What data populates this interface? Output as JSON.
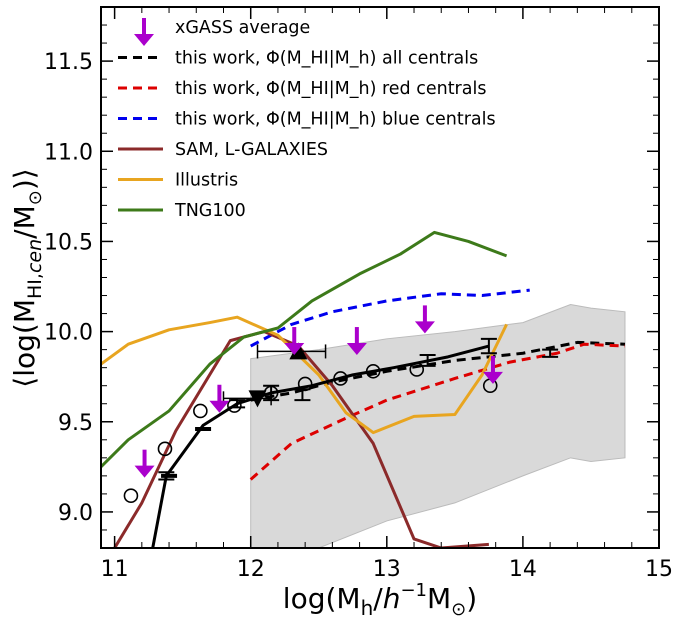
{
  "chart_data": {
    "type": "line",
    "xlabel": "log(M_h/h^-1 M_sun)",
    "ylabel": "<log(M_HI,cen/M_sun)>",
    "xlim": [
      10.9,
      15.0
    ],
    "ylim": [
      8.8,
      11.8
    ],
    "xticks": [
      11,
      12,
      13,
      14,
      15
    ],
    "xtick_labels": [
      "11",
      "12",
      "13",
      "14",
      "15"
    ],
    "yticks": [
      9.0,
      9.5,
      10.0,
      10.5,
      11.0,
      11.5
    ],
    "ytick_labels": [
      "9.0",
      "9.5",
      "10.0",
      "10.5",
      "11.0",
      "11.5"
    ],
    "legend_position": "top-left",
    "colors": {
      "all": "#000000",
      "red": "#dd0000",
      "blue": "#0000ee",
      "sam": "#8b2a2a",
      "illustris": "#e8a520",
      "tng": "#3d7a1a",
      "xgass": "#aa00cc",
      "band": "#d9d9d9"
    },
    "legend": [
      {
        "key": "xgass",
        "label": "xGASS average",
        "style": "arrow"
      },
      {
        "key": "all",
        "label": "this work, Φ(M_HI|M_h) all centrals",
        "style": "dashed"
      },
      {
        "key": "red",
        "label": "this work, Φ(M_HI|M_h) red centrals",
        "style": "dashed"
      },
      {
        "key": "blue",
        "label": "this work, Φ(M_HI|M_h) blue centrals",
        "style": "dashed"
      },
      {
        "key": "sam",
        "label": "SAM, L-GALAXIES",
        "style": "solid"
      },
      {
        "key": "illustris",
        "label": "Illustris",
        "style": "solid"
      },
      {
        "key": "tng",
        "label": "TNG100",
        "style": "solid"
      }
    ],
    "series": [
      {
        "key": "all",
        "style": "dashed",
        "x": [
          12.0,
          12.3,
          12.6,
          13.0,
          13.5,
          14.0,
          14.4,
          14.75
        ],
        "y": [
          9.62,
          9.66,
          9.72,
          9.78,
          9.84,
          9.88,
          9.94,
          9.93
        ]
      },
      {
        "key": "red",
        "style": "dashed",
        "x": [
          12.0,
          12.3,
          12.7,
          13.0,
          13.5,
          13.9,
          14.25,
          14.45,
          14.75
        ],
        "y": [
          9.18,
          9.38,
          9.52,
          9.62,
          9.74,
          9.83,
          9.88,
          9.93,
          9.92
        ]
      },
      {
        "key": "blue",
        "style": "dashed",
        "x": [
          12.0,
          12.3,
          12.6,
          13.0,
          13.4,
          13.7,
          14.05
        ],
        "y": [
          9.92,
          10.04,
          10.11,
          10.17,
          10.21,
          10.2,
          10.23
        ]
      },
      {
        "key": "sam",
        "style": "solid",
        "x": [
          11.0,
          11.2,
          11.45,
          11.85,
          12.1,
          12.35,
          12.6,
          12.9,
          13.2,
          13.4,
          13.75
        ],
        "y": [
          8.8,
          9.05,
          9.45,
          9.95,
          10.0,
          9.92,
          9.7,
          9.38,
          8.85,
          8.8,
          8.82
        ]
      },
      {
        "key": "illustris",
        "style": "solid",
        "x": [
          10.9,
          11.1,
          11.4,
          11.7,
          11.9,
          12.2,
          12.5,
          12.7,
          12.9,
          13.2,
          13.5,
          13.7,
          13.88
        ],
        "y": [
          9.82,
          9.93,
          10.01,
          10.05,
          10.08,
          9.98,
          9.76,
          9.55,
          9.44,
          9.53,
          9.54,
          9.76,
          10.04
        ]
      },
      {
        "key": "tng",
        "style": "solid",
        "x": [
          10.9,
          11.1,
          11.4,
          11.7,
          11.95,
          12.2,
          12.45,
          12.8,
          13.1,
          13.35,
          13.6,
          13.88
        ],
        "y": [
          9.25,
          9.4,
          9.56,
          9.82,
          9.97,
          10.02,
          10.17,
          10.32,
          10.43,
          10.55,
          10.5,
          10.42
        ]
      },
      {
        "key": "all",
        "style": "solid",
        "x": [
          11.28,
          11.38,
          11.65,
          11.9,
          12.15,
          12.45,
          12.75,
          13.05,
          13.45,
          13.75
        ],
        "y": [
          8.8,
          9.2,
          9.48,
          9.6,
          9.66,
          9.7,
          9.76,
          9.8,
          9.86,
          9.92
        ]
      }
    ],
    "band": {
      "x": [
        12.0,
        12.5,
        13.0,
        13.5,
        14.0,
        14.35,
        14.5,
        14.75
      ],
      "lower": [
        8.75,
        8.8,
        8.95,
        9.05,
        9.2,
        9.3,
        9.28,
        9.3
      ],
      "upper": [
        9.85,
        9.9,
        9.96,
        10.0,
        10.05,
        10.15,
        10.13,
        10.11
      ]
    },
    "error_bars": [
      {
        "x": 11.38,
        "y": 9.2,
        "dy": 0.02
      },
      {
        "x": 11.9,
        "y": 9.6,
        "dy": 0.02
      },
      {
        "x": 12.15,
        "y": 9.66,
        "dy": 0.04
      },
      {
        "x": 12.38,
        "y": 9.65,
        "dy": 0.03
      },
      {
        "x": 13.3,
        "y": 9.84,
        "dy": 0.03
      },
      {
        "x": 13.75,
        "y": 9.92,
        "dy": 0.04
      },
      {
        "x": 14.2,
        "y": 9.88,
        "dy": 0.02
      }
    ],
    "hmarks": [
      {
        "x": 11.65,
        "y": 9.46
      },
      {
        "x": 11.4,
        "y": 9.2
      }
    ],
    "open_circles": [
      {
        "x": 11.12,
        "y": 9.09
      },
      {
        "x": 11.37,
        "y": 9.35
      },
      {
        "x": 11.63,
        "y": 9.56
      },
      {
        "x": 11.88,
        "y": 9.59
      },
      {
        "x": 12.15,
        "y": 9.66
      },
      {
        "x": 12.4,
        "y": 9.71
      },
      {
        "x": 12.66,
        "y": 9.74
      },
      {
        "x": 12.9,
        "y": 9.78
      },
      {
        "x": 13.22,
        "y": 9.79
      },
      {
        "x": 13.76,
        "y": 9.7
      }
    ],
    "triangle_up": {
      "x": 12.35,
      "y": 9.89,
      "xerr": [
        12.05,
        12.55
      ],
      "dy": 0.06
    },
    "triangle_down": {
      "x": 12.05,
      "y": 9.63,
      "xerr": [
        11.8,
        12.15
      ],
      "dy": 0.06
    },
    "xgass_arrows": [
      {
        "x": 11.22,
        "y": 9.19
      },
      {
        "x": 11.77,
        "y": 9.55
      },
      {
        "x": 12.32,
        "y": 9.87
      },
      {
        "x": 12.78,
        "y": 9.87
      },
      {
        "x": 13.28,
        "y": 9.99
      },
      {
        "x": 13.78,
        "y": 9.71
      }
    ]
  }
}
